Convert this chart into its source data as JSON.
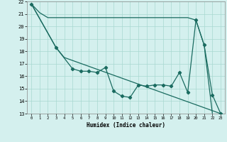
{
  "xlabel": "Humidex (Indice chaleur)",
  "ylabel": "",
  "bg_color": "#d4f0ee",
  "grid_color": "#a8d8d0",
  "line_color": "#1a6b60",
  "xlim": [
    -0.5,
    23.5
  ],
  "ylim": [
    13,
    22
  ],
  "xticks": [
    0,
    1,
    2,
    3,
    4,
    5,
    6,
    7,
    8,
    9,
    10,
    11,
    12,
    13,
    14,
    15,
    16,
    17,
    18,
    19,
    20,
    21,
    22,
    23
  ],
  "yticks": [
    13,
    14,
    15,
    16,
    17,
    18,
    19,
    20,
    21,
    22
  ],
  "series1_x": [
    0,
    1,
    2,
    3,
    4,
    5,
    6,
    7,
    8,
    9,
    10,
    11,
    12,
    13,
    14,
    15,
    16,
    17,
    18,
    19,
    20,
    21,
    22
  ],
  "series1_y": [
    21.8,
    21.1,
    20.7,
    20.7,
    20.7,
    20.7,
    20.7,
    20.7,
    20.7,
    20.7,
    20.7,
    20.7,
    20.7,
    20.7,
    20.7,
    20.7,
    20.7,
    20.7,
    20.7,
    20.7,
    20.5,
    18.5,
    13.0
  ],
  "series2_x": [
    0,
    3,
    5,
    6,
    7,
    8,
    9,
    10,
    11,
    12,
    13,
    14,
    15,
    16,
    17,
    18,
    19,
    20,
    21,
    22,
    23
  ],
  "series2_y": [
    21.8,
    18.3,
    16.6,
    16.4,
    16.4,
    16.3,
    16.7,
    14.8,
    14.4,
    14.3,
    15.3,
    15.2,
    15.3,
    15.3,
    15.2,
    16.3,
    14.7,
    20.5,
    18.5,
    14.5,
    13.0
  ],
  "series3_x": [
    0,
    3,
    4,
    23
  ],
  "series3_y": [
    21.8,
    18.3,
    17.5,
    13.0
  ]
}
